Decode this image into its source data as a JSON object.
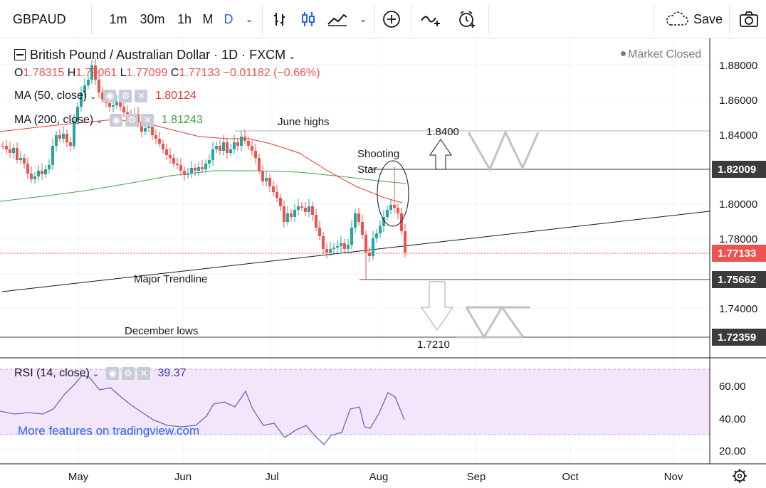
{
  "toolbar": {
    "symbol": "GBPAUD",
    "intervals": [
      "1m",
      "30m",
      "1h",
      "M",
      "D"
    ],
    "active_interval": "D",
    "save_label": "Save"
  },
  "legend": {
    "title": "British Pound / Australian Dollar · 1D · FXCM",
    "market_status": "Market Closed",
    "ohlc": {
      "o_label": "O",
      "o": "1.78315",
      "h_label": "H",
      "h": "1.79061",
      "l_label": "L",
      "l": "1.77099",
      "c_label": "C",
      "c": "1.77133",
      "change": "−0.01182 (−0.66%)"
    },
    "ma50": {
      "name": "MA (50, close)",
      "value": "1.80124",
      "color": "#e53935"
    },
    "ma200": {
      "name": "MA (200, close)",
      "value": "1.81243",
      "color": "#43a047"
    }
  },
  "annotations": {
    "june_highs": "June highs",
    "price_1_8400": "1.8400",
    "shooting_star": "Shooting\nStar",
    "shooting_star_line1": "Shooting",
    "shooting_star_line2": "Star",
    "major_trendline": "Major Trendline",
    "december_lows": "December lows",
    "price_1_7210": "1.7210"
  },
  "price_axis": {
    "ticks": [
      "1.88000",
      "1.86000",
      "1.84000",
      "1.80000",
      "1.78000",
      "1.74000"
    ],
    "tags": [
      {
        "value": "1.82009",
        "color": "#3c3c3c"
      },
      {
        "value": "1.77133",
        "color": "#ef5350"
      },
      {
        "value": "1.75662",
        "color": "#3c3c3c"
      },
      {
        "value": "1.72359",
        "color": "#3c3c3c"
      }
    ]
  },
  "time_axis": {
    "labels": [
      "May",
      "Jun",
      "Jul",
      "Aug",
      "Sep",
      "Oct",
      "Nov"
    ]
  },
  "rsi": {
    "name": "RSI (14, close)",
    "value": "39.37",
    "ticks": [
      "60.00",
      "40.00",
      "20.00"
    ],
    "promo": "More features on tradingview.com"
  },
  "colors": {
    "up": "#26a69a",
    "down": "#ef5350",
    "accent": "#2962ff",
    "rsi_line": "#7e57c2",
    "rsi_band": "#f3e6fb"
  }
}
